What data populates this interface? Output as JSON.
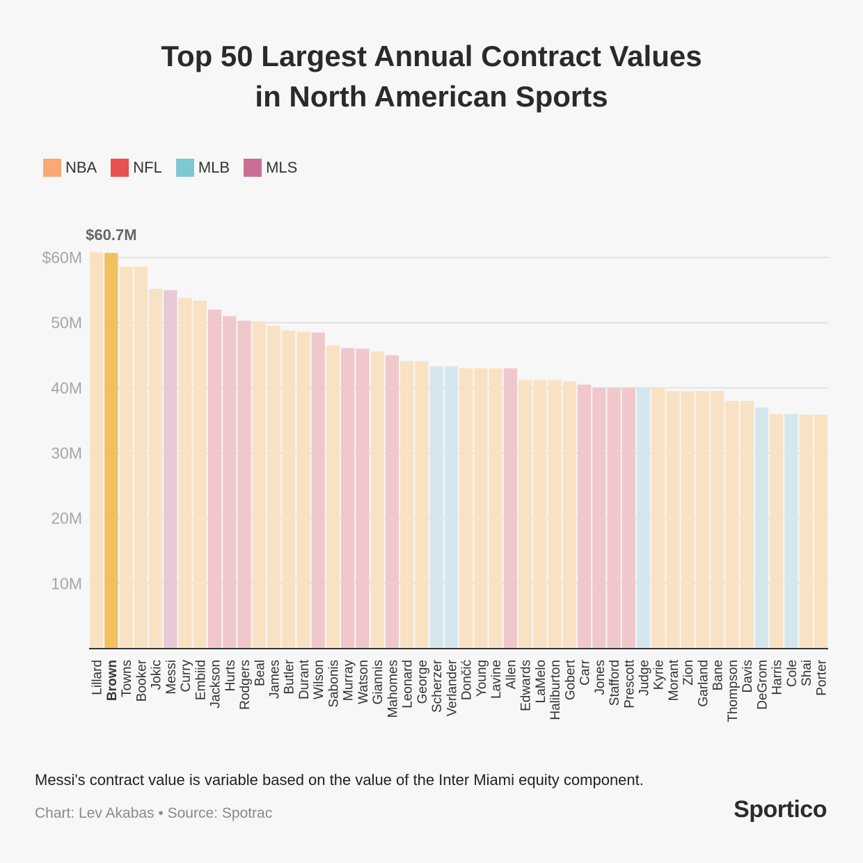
{
  "title_lines": [
    "Top 50 Largest Annual Contract Values",
    "in North American Sports"
  ],
  "legend": [
    {
      "label": "NBA",
      "color": "#fba873"
    },
    {
      "label": "NFL",
      "color": "#e9504f"
    },
    {
      "label": "MLB",
      "color": "#7fc8d2"
    },
    {
      "label": "MLS",
      "color": "#c96e94"
    }
  ],
  "bar_colors": {
    "NBA": "#f8e2c3",
    "NFL": "#f0c7cb",
    "MLB": "#d4e7ec",
    "MLS": "#e8c9d6",
    "highlight": "#f2bf61"
  },
  "chart_data": {
    "type": "bar",
    "title": "Top 50 Largest Annual Contract Values in North American Sports",
    "xlabel": "",
    "ylabel": "",
    "ylim": [
      0,
      60
    ],
    "yticks": [
      10,
      20,
      30,
      40,
      50,
      60
    ],
    "ytick_labels": [
      "10M",
      "20M",
      "30M",
      "40M",
      "50M",
      "$60M"
    ],
    "grid": true,
    "highlight": "Brown",
    "annotation": "$60.7M",
    "categories": [
      "Lillard",
      "Brown",
      "Towns",
      "Booker",
      "Jokic",
      "Messi",
      "Curry",
      "Embiid",
      "Jackson",
      "Hurts",
      "Rodgers",
      "Beal",
      "James",
      "Butler",
      "Durant",
      "Wilson",
      "Sabonis",
      "Murray",
      "Watson",
      "Giannis",
      "Mahomes",
      "Leonard",
      "George",
      "Scherzer",
      "Verlander",
      "Dončić",
      "Young",
      "Lavine",
      "Allen",
      "Edwards",
      "LaMelo",
      "Haliburton",
      "Gobert",
      "Carr",
      "Jones",
      "Stafford",
      "Prescott",
      "Judge",
      "Kyrie",
      "Morant",
      "Zion",
      "Garland",
      "Bane",
      "Thompson",
      "Davis",
      "DeGrom",
      "Harris",
      "Cole",
      "Shai",
      "Porter"
    ],
    "leagues": [
      "NBA",
      "NBA",
      "NBA",
      "NBA",
      "NBA",
      "MLS",
      "NBA",
      "NBA",
      "NFL",
      "NFL",
      "NFL",
      "NBA",
      "NBA",
      "NBA",
      "NBA",
      "NFL",
      "NBA",
      "NFL",
      "NFL",
      "NBA",
      "NFL",
      "NBA",
      "NBA",
      "MLB",
      "MLB",
      "NBA",
      "NBA",
      "NBA",
      "NFL",
      "NBA",
      "NBA",
      "NBA",
      "NBA",
      "NFL",
      "NFL",
      "NFL",
      "NFL",
      "MLB",
      "NBA",
      "NBA",
      "NBA",
      "NBA",
      "NBA",
      "NBA",
      "NBA",
      "MLB",
      "NBA",
      "MLB",
      "NBA",
      "NBA"
    ],
    "values": [
      60.8,
      60.7,
      58.6,
      58.6,
      55.2,
      55.0,
      53.8,
      53.4,
      52.0,
      51.0,
      50.3,
      50.2,
      49.5,
      48.8,
      48.6,
      48.5,
      46.5,
      46.1,
      46.0,
      45.6,
      45.0,
      44.1,
      44.1,
      43.3,
      43.3,
      43.0,
      43.0,
      43.0,
      43.0,
      41.2,
      41.2,
      41.2,
      41.0,
      40.5,
      40.0,
      40.0,
      40.0,
      40.0,
      40.0,
      39.5,
      39.5,
      39.5,
      39.5,
      38.0,
      38.0,
      37.0,
      36.0,
      36.0,
      35.9,
      35.9
    ]
  },
  "footnote": "Messi's contract value is variable based on the value of the Inter Miami equity component.",
  "credit": "Chart: Lev Akabas • Source: Spotrac",
  "logo": "Sportico"
}
